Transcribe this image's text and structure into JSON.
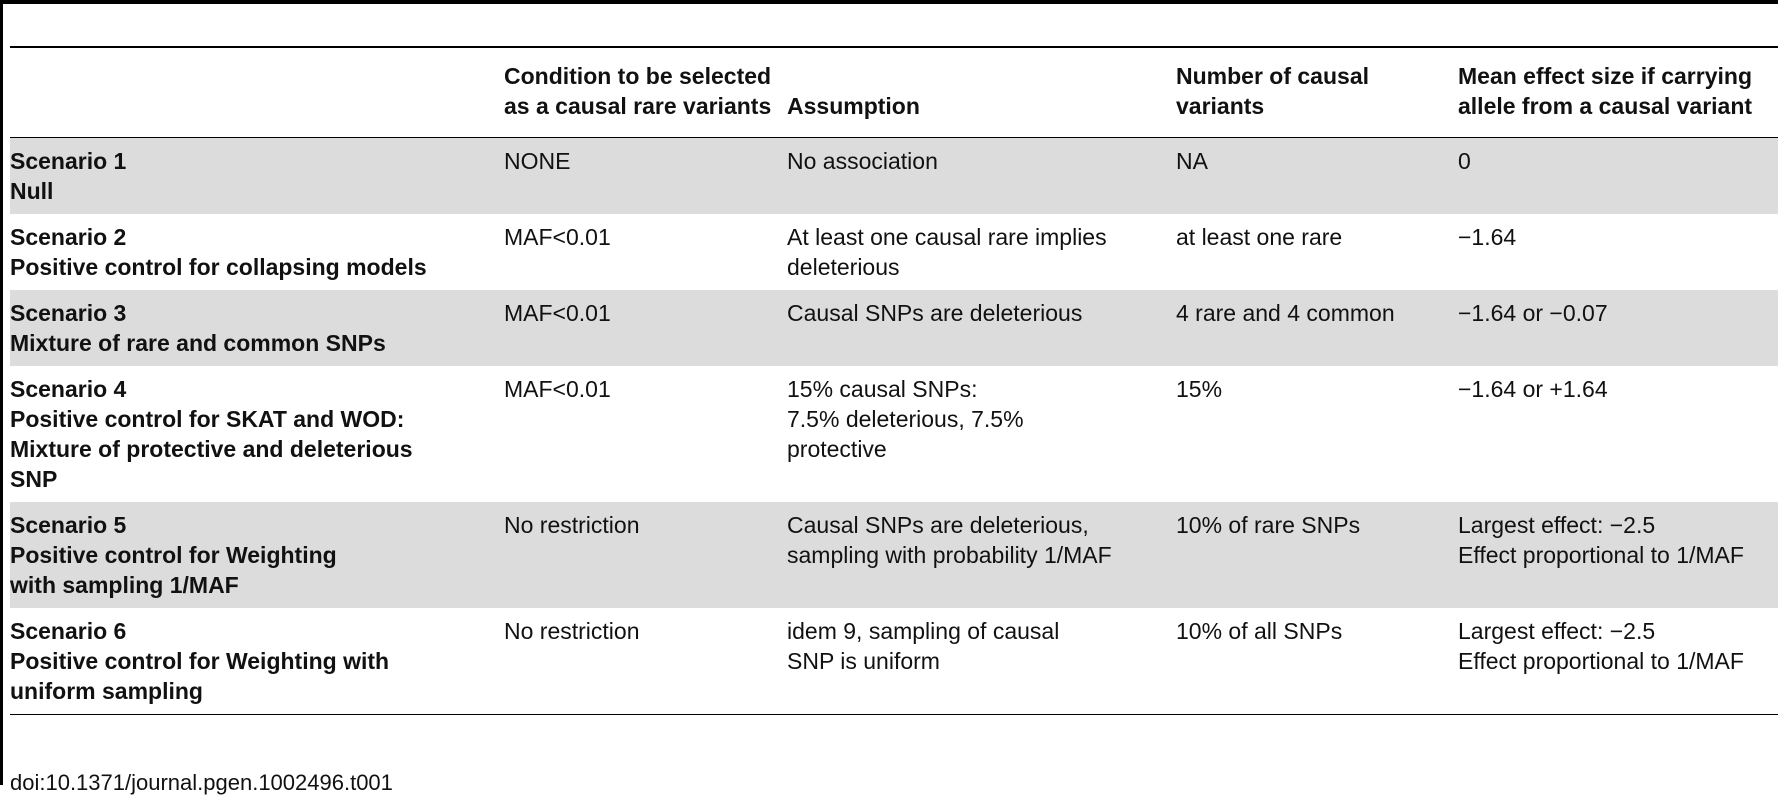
{
  "table": {
    "headers": [
      "",
      "Condition to be selected as a causal rare variants",
      "Assumption",
      "Number of causal variants",
      "Mean effect size if carrying allele from a causal variant"
    ],
    "rows": [
      {
        "scenario": [
          "Scenario 1",
          "Null"
        ],
        "condition": [
          "NONE"
        ],
        "assumption": [
          "No association"
        ],
        "number": [
          "NA"
        ],
        "effect": [
          "0"
        ]
      },
      {
        "scenario": [
          "Scenario 2",
          "Positive control for collapsing models"
        ],
        "condition": [
          "MAF<0.01"
        ],
        "assumption": [
          "At least one causal rare implies",
          "deleterious"
        ],
        "number": [
          "at least one rare"
        ],
        "effect": [
          "−1.64"
        ]
      },
      {
        "scenario": [
          "Scenario 3",
          "Mixture of rare and common SNPs"
        ],
        "condition": [
          "MAF<0.01"
        ],
        "assumption": [
          "Causal SNPs are deleterious"
        ],
        "number": [
          "4 rare and 4 common"
        ],
        "effect": [
          "−1.64 or −0.07"
        ]
      },
      {
        "scenario": [
          "Scenario 4",
          "Positive control for SKAT and WOD:",
          "Mixture of protective and deleterious",
          "SNP"
        ],
        "condition": [
          "MAF<0.01"
        ],
        "assumption": [
          "15% causal SNPs:",
          "7.5% deleterious, 7.5%",
          "protective"
        ],
        "number": [
          "15%"
        ],
        "effect": [
          "−1.64 or +1.64"
        ]
      },
      {
        "scenario": [
          "Scenario 5",
          "Positive control for Weighting",
          "with sampling 1/MAF"
        ],
        "condition": [
          "No restriction"
        ],
        "assumption": [
          "Causal SNPs are deleterious,",
          "sampling with probability 1/MAF"
        ],
        "number": [
          "10% of rare SNPs"
        ],
        "effect": [
          "Largest effect: −2.5",
          "Effect proportional to 1/MAF"
        ]
      },
      {
        "scenario": [
          "Scenario 6",
          "Positive control for Weighting with",
          "uniform sampling"
        ],
        "condition": [
          "No restriction"
        ],
        "assumption": [
          "idem 9, sampling of causal",
          "SNP is uniform"
        ],
        "number": [
          "10% of all SNPs"
        ],
        "effect": [
          "Largest effect: −2.5",
          "Effect proportional to 1/MAF"
        ]
      }
    ]
  },
  "doi": "doi:10.1371/journal.pgen.1002496.t001"
}
